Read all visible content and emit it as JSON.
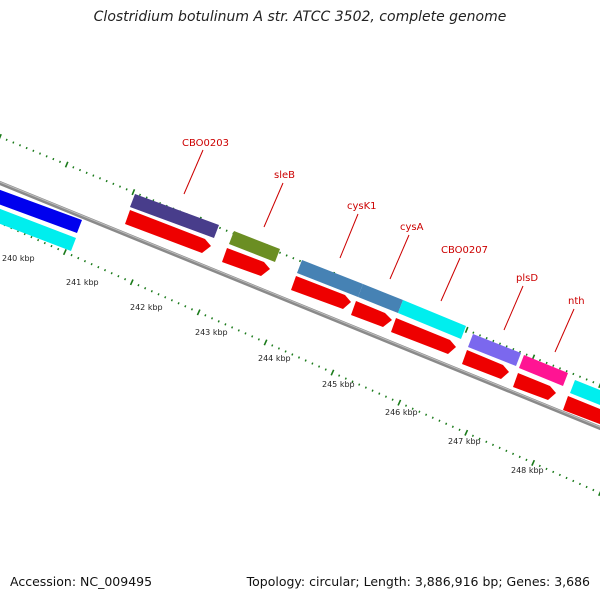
{
  "title": "Clostridium botulinum A str. ATCC 3502, complete genome",
  "footer": {
    "accession": "Accession: NC_009495",
    "summary": "Topology: circular; Length: 3,886,916 bp; Genes: 3,686"
  },
  "scale_labels": [
    "240 kbp",
    "241 kbp",
    "242 kbp",
    "243 kbp",
    "244 kbp",
    "245 kbp",
    "246 kbp",
    "247 kbp",
    "248 kbp"
  ],
  "gene_labels": [
    "CBO0203",
    "sleB",
    "cysK1",
    "cysA",
    "CBO0207",
    "plsD",
    "nth"
  ],
  "colors": {
    "backbone": "#8a8a8a",
    "tick": "#1a7a1a",
    "label": "#cc0000",
    "cds": "#ee0000",
    "blue": "#0000ee",
    "cyan": "#00eeee",
    "purple": "#483d8b",
    "olive": "#6b8e23",
    "steel": "#4682b4",
    "medium_purple": "#7b68ee",
    "pink": "#ff1493"
  }
}
